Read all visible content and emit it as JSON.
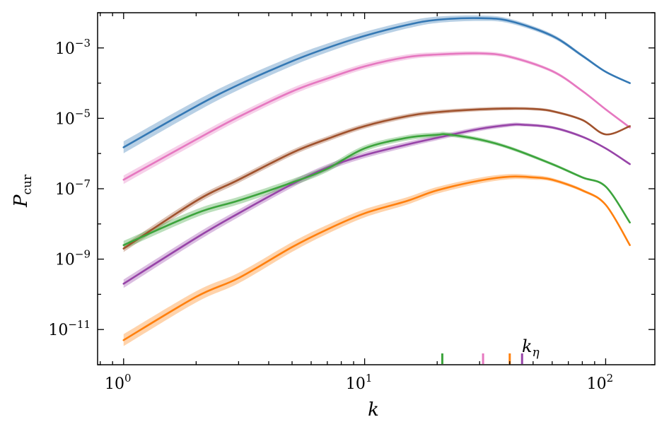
{
  "chart_data": {
    "type": "line",
    "xlabel": "k",
    "ylabel": "P",
    "ylabel_sub": "cur",
    "xscale": "log",
    "yscale": "log",
    "xlim": [
      0.78,
      160
    ],
    "ylim": [
      1e-12,
      0.01
    ],
    "grid": false,
    "x_ticks": [
      {
        "value": 1,
        "base": "10",
        "exp": "0"
      },
      {
        "value": 10,
        "base": "10",
        "exp": "1"
      },
      {
        "value": 100,
        "base": "10",
        "exp": "2"
      }
    ],
    "y_ticks": [
      {
        "value": 1e-11,
        "base": "10",
        "exp": "−11"
      },
      {
        "value": 1e-09,
        "base": "10",
        "exp": "−9"
      },
      {
        "value": 1e-07,
        "base": "10",
        "exp": "−7"
      },
      {
        "value": 1e-05,
        "base": "10",
        "exp": "−5"
      },
      {
        "value": 0.001,
        "base": "10",
        "exp": "−3"
      }
    ],
    "series": [
      {
        "color": "#3478b4",
        "band": 0.15,
        "x": [
          1,
          2,
          3,
          5,
          7,
          10,
          15,
          20,
          30,
          40,
          60,
          80,
          100,
          126
        ],
        "y": [
          1.5e-06,
          2.2e-05,
          9e-05,
          0.00042,
          0.001,
          0.0022,
          0.0045,
          0.0063,
          0.007,
          0.0058,
          0.0022,
          0.0006,
          0.00021,
          0.0001
        ]
      },
      {
        "color": "#e678c0",
        "band": 0.1,
        "x": [
          1,
          2,
          3,
          5,
          7,
          10,
          15,
          20,
          30,
          40,
          60,
          80,
          100,
          126
        ],
        "y": [
          1.8e-07,
          2.5e-06,
          1.1e-05,
          5.8e-05,
          0.000135,
          0.0003,
          0.00055,
          0.00065,
          0.0007,
          0.00056,
          0.00022,
          6e-05,
          1.8e-05,
          5.5e-06
        ]
      },
      {
        "color": "#a0522d",
        "band": 0.08,
        "x": [
          1,
          2,
          3,
          5,
          7,
          10,
          15,
          20,
          30,
          40,
          50,
          60,
          80,
          100,
          126
        ],
        "y": [
          2e-09,
          4.5e-08,
          1.8e-07,
          1.05e-06,
          2.6e-06,
          6e-06,
          1.15e-05,
          1.5e-05,
          1.8e-05,
          1.9e-05,
          1.85e-05,
          1.6e-05,
          9e-06,
          3.5e-06,
          6e-06
        ]
      },
      {
        "color": "#9744a8",
        "band": 0.1,
        "x": [
          1,
          2,
          3,
          5,
          7,
          10,
          15,
          20,
          30,
          40,
          45,
          60,
          80,
          100,
          126
        ],
        "y": [
          2e-10,
          4e-09,
          2e-08,
          1.35e-07,
          4e-07,
          9e-07,
          1.8e-06,
          2.8e-06,
          5e-06,
          6.5e-06,
          6.6e-06,
          5.5e-06,
          3e-06,
          1.4e-06,
          5e-07
        ]
      },
      {
        "color": "#3ca43c",
        "band": 0.1,
        "x": [
          1,
          2,
          3,
          5,
          7,
          10,
          15,
          20,
          22,
          30,
          40,
          60,
          80,
          100,
          126
        ],
        "y": [
          2.5e-09,
          2e-08,
          4.6e-08,
          1.5e-07,
          3.7e-07,
          1.4e-06,
          2.8e-06,
          3.4e-06,
          3.5e-06,
          2.5e-06,
          1.45e-06,
          5e-07,
          2.1e-07,
          1.15e-07,
          1.1e-08
        ]
      },
      {
        "color": "#ff800e",
        "band": 0.15,
        "x": [
          1,
          2,
          3,
          5,
          7,
          10,
          15,
          20,
          30,
          40,
          50,
          60,
          80,
          100,
          126
        ],
        "y": [
          5e-12,
          8.5e-11,
          2.9e-10,
          2.2e-09,
          7e-09,
          2e-08,
          4.5e-08,
          9e-08,
          1.7e-07,
          2.2e-07,
          2.1e-07,
          1.8e-07,
          9e-08,
          3.5e-08,
          2.5e-09
        ]
      }
    ],
    "k_eta": {
      "label": "k",
      "label_sub": "η",
      "markers": [
        {
          "x": 21,
          "color": "#3ca43c"
        },
        {
          "x": 31,
          "color": "#e678c0"
        },
        {
          "x": 40,
          "color": "#ff800e"
        },
        {
          "x": 45,
          "color": "#9744a8"
        }
      ]
    }
  }
}
